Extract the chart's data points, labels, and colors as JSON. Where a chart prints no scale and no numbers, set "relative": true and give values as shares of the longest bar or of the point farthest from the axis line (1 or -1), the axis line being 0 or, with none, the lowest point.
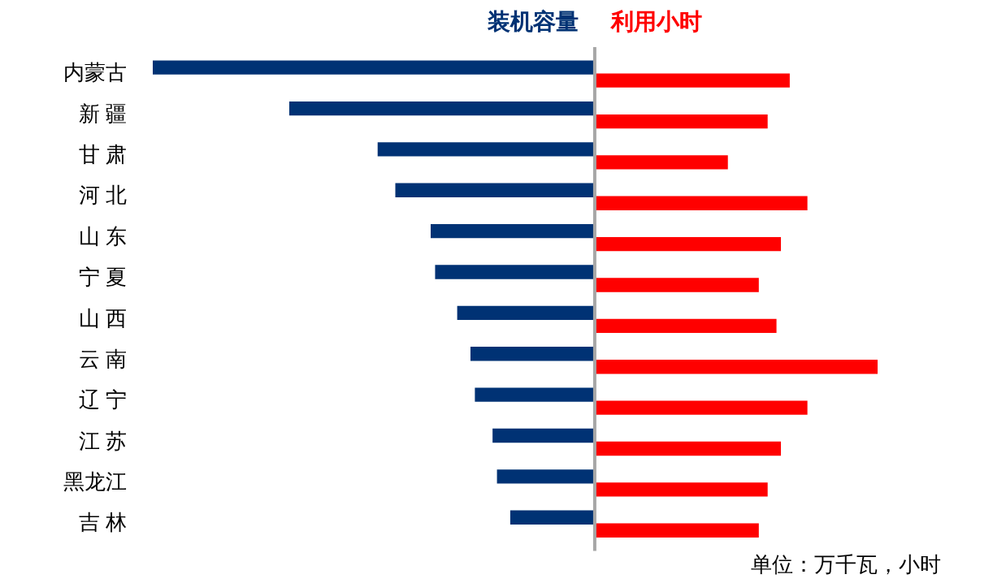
{
  "chart_data": {
    "type": "bar",
    "orientation": "horizontal",
    "relative": true,
    "legend": false,
    "categories": [
      "内蒙古",
      "新 疆",
      "甘 肃",
      "河 北",
      "山 东",
      "宁 夏",
      "山 西",
      "云 南",
      "辽 宁",
      "江 苏",
      "黑龙江",
      "吉 林"
    ],
    "series": [
      {
        "name": "装机容量",
        "color": "#003274",
        "values": [
          -1,
          -0.69,
          -0.49,
          -0.45,
          -0.37,
          -0.36,
          -0.31,
          -0.28,
          -0.27,
          -0.23,
          -0.22,
          -0.19
        ]
      },
      {
        "name": "利用小时",
        "color": "#ff0000",
        "values": [
          0.44,
          0.39,
          0.3,
          0.48,
          0.42,
          0.37,
          0.41,
          0.64,
          0.48,
          0.42,
          0.39,
          0.37
        ]
      }
    ],
    "annotations": [
      "单位：万千瓦，小时"
    ]
  }
}
